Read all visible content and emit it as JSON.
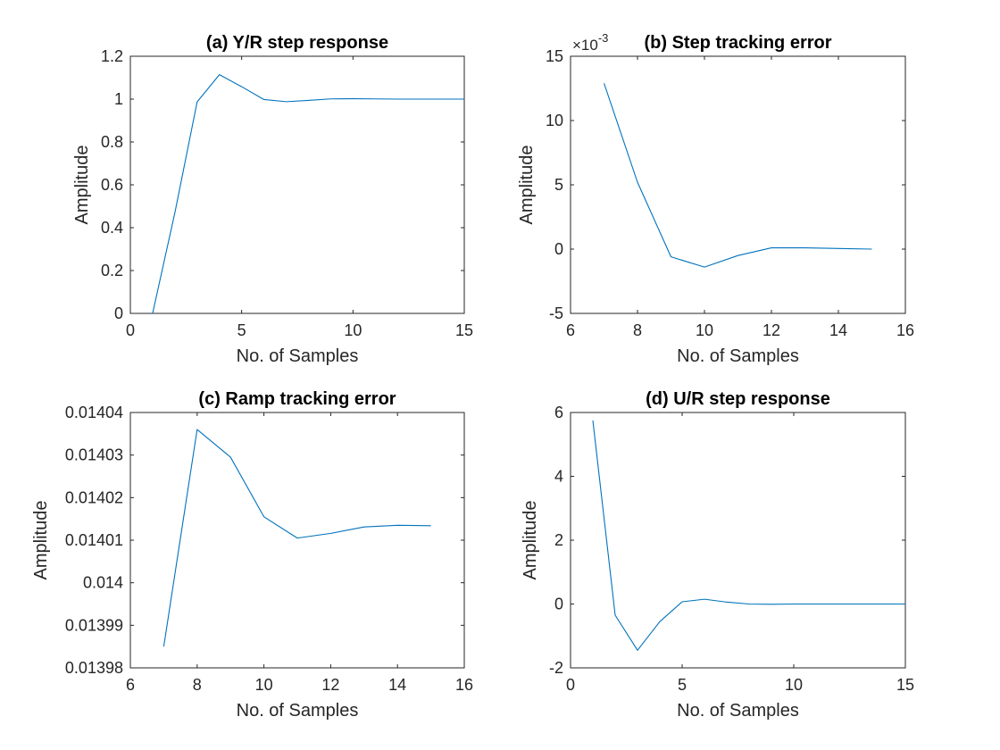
{
  "colors": {
    "series": "#0072bd",
    "axes": "#262626"
  },
  "chart_data": [
    {
      "id": "a",
      "type": "line",
      "title": "(a) Y/R step response",
      "xlabel": "No. of Samples",
      "ylabel": "Amplitude",
      "xlim": [
        0,
        15
      ],
      "ylim": [
        0,
        1.2
      ],
      "xticks": [
        0,
        5,
        10,
        15
      ],
      "xtick_labels": [
        "0",
        "5",
        "10",
        "15"
      ],
      "yticks": [
        0,
        0.2,
        0.4,
        0.6,
        0.8,
        1,
        1.2
      ],
      "ytick_labels": [
        "0",
        "0.2",
        "0.4",
        "0.6",
        "0.8",
        "1",
        "1.2"
      ],
      "series": [
        {
          "x": [
            1,
            2,
            3,
            4,
            5,
            6,
            7,
            8,
            9,
            10,
            11,
            12,
            13,
            14,
            15
          ],
          "y": [
            0,
            0.47,
            0.987,
            1.114,
            1.058,
            0.998,
            0.988,
            0.994,
            1.001,
            1.002,
            1.001,
            1.0,
            1.0,
            1.0,
            1.0
          ]
        }
      ]
    },
    {
      "id": "b",
      "type": "line",
      "title": "(b) Step tracking error",
      "xlabel": "No. of Samples",
      "ylabel": "Amplitude",
      "exponent_label": "×10",
      "exponent_power": "-3",
      "xlim": [
        6,
        16
      ],
      "ylim": [
        -5,
        15
      ],
      "xticks": [
        6,
        8,
        10,
        12,
        14,
        16
      ],
      "xtick_labels": [
        "6",
        "8",
        "10",
        "12",
        "14",
        "16"
      ],
      "yticks": [
        -5,
        0,
        5,
        10,
        15
      ],
      "ytick_labels": [
        "-5",
        "0",
        "5",
        "10",
        "15"
      ],
      "series": [
        {
          "x": [
            7,
            8,
            9,
            10,
            11,
            12,
            13,
            14,
            15
          ],
          "y": [
            12.9,
            5.2,
            -0.6,
            -1.4,
            -0.5,
            0.1,
            0.1,
            0.05,
            0.0
          ]
        }
      ]
    },
    {
      "id": "c",
      "type": "line",
      "title": "(c) Ramp tracking error",
      "xlabel": "No. of Samples",
      "ylabel": "Amplitude",
      "xlim": [
        6,
        16
      ],
      "ylim": [
        0.01398,
        0.01404
      ],
      "xticks": [
        6,
        8,
        10,
        12,
        14,
        16
      ],
      "xtick_labels": [
        "6",
        "8",
        "10",
        "12",
        "14",
        "16"
      ],
      "yticks": [
        0.01398,
        0.01399,
        0.014,
        0.01401,
        0.01402,
        0.01403,
        0.01404
      ],
      "ytick_labels": [
        "0.01398",
        "0.01399",
        "0.014",
        "0.01401",
        "0.01402",
        "0.01403",
        "0.01404"
      ],
      "series": [
        {
          "x": [
            7,
            8,
            9,
            10,
            11,
            12,
            13,
            14,
            15
          ],
          "y": [
            0.013985,
            0.014036,
            0.0140295,
            0.0140155,
            0.0140105,
            0.0140116,
            0.0140131,
            0.0140135,
            0.0140134
          ]
        }
      ]
    },
    {
      "id": "d",
      "type": "line",
      "title": "(d) U/R step response",
      "xlabel": "No. of Samples",
      "ylabel": "Amplitude",
      "xlim": [
        0,
        15
      ],
      "ylim": [
        -2,
        6
      ],
      "xticks": [
        0,
        5,
        10,
        15
      ],
      "xtick_labels": [
        "0",
        "5",
        "10",
        "15"
      ],
      "yticks": [
        -2,
        0,
        2,
        4,
        6
      ],
      "ytick_labels": [
        "-2",
        "0",
        "2",
        "4",
        "6"
      ],
      "series": [
        {
          "x": [
            1,
            2,
            3,
            4,
            5,
            6,
            7,
            8,
            9,
            10,
            11,
            12,
            13,
            14,
            15
          ],
          "y": [
            5.75,
            -0.35,
            -1.45,
            -0.55,
            0.07,
            0.15,
            0.06,
            0.0,
            -0.01,
            0.0,
            0.0,
            0.0,
            0.0,
            0.0,
            0.0
          ]
        }
      ]
    }
  ]
}
